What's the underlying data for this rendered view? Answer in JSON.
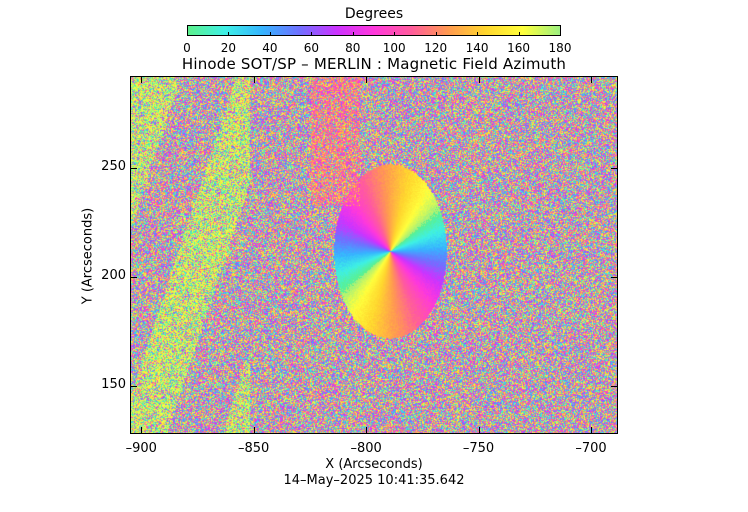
{
  "colorbar": {
    "title": "Degrees",
    "ticks": [
      "0",
      "20",
      "40",
      "60",
      "80",
      "100",
      "120",
      "140",
      "160",
      "180"
    ],
    "range": [
      0,
      180
    ],
    "stops": [
      "#5cf08c",
      "#3ef0e6",
      "#36b4ff",
      "#7070ff",
      "#cc33ff",
      "#ff38dc",
      "#ff5c9c",
      "#ff9a50",
      "#ffd62e",
      "#ffff3c",
      "#9cf080"
    ]
  },
  "title": "Hinode SOT/SP – MERLIN : Magnetic Field Azimuth",
  "axes": {
    "xlabel": "X (Arcseconds)",
    "ylabel": "Y (Arcseconds)",
    "xticks": [
      "–900",
      "–850",
      "–800",
      "–750",
      "–700"
    ],
    "yticks": [
      "150",
      "200",
      "250"
    ],
    "xlim": [
      -905,
      -688
    ],
    "ylim": [
      128,
      292
    ]
  },
  "timestamp": "14–May–2025 10:41:35.642"
}
